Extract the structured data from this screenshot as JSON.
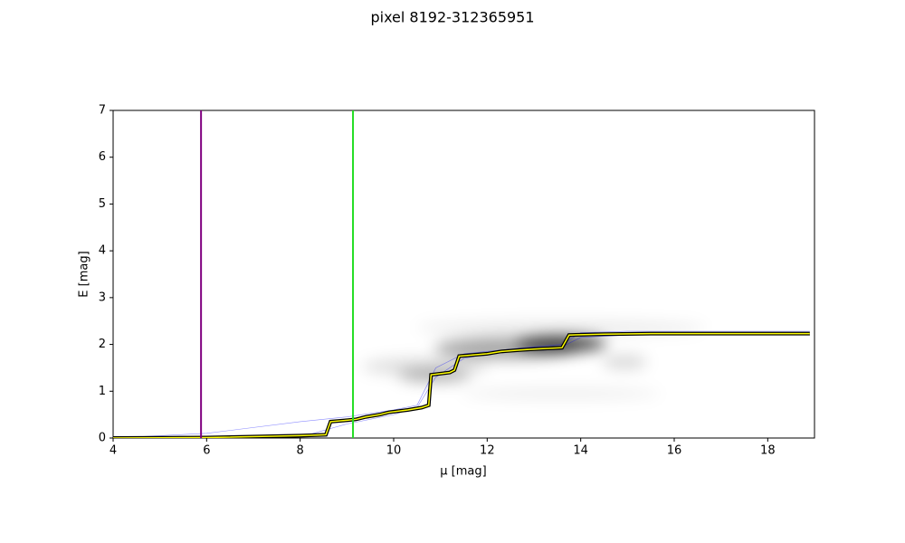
{
  "chart_data": {
    "type": "line",
    "title": "pixel 8192-312365951",
    "xlabel": "μ [mag]",
    "ylabel": "E [mag]",
    "xlim": [
      4,
      19
    ],
    "ylim": [
      0,
      7
    ],
    "xticks": [
      4,
      6,
      8,
      10,
      12,
      14,
      16,
      18
    ],
    "yticks": [
      0,
      1,
      2,
      3,
      4,
      5,
      6,
      7
    ],
    "vlines": [
      {
        "x": 5.88,
        "color": "#800080"
      },
      {
        "x": 9.13,
        "color": "#22dd22"
      }
    ],
    "series": [
      {
        "color": "#0000ff",
        "width": 0.6,
        "opacity": 0.45,
        "x": [
          4,
          6,
          8,
          9,
          10,
          10.5,
          10.9,
          11.5,
          12,
          13,
          13.6,
          14,
          15,
          18.9
        ],
        "values": [
          0,
          0.1,
          0.35,
          0.45,
          0.6,
          0.7,
          1.5,
          1.8,
          1.85,
          1.95,
          2.0,
          2.25,
          2.28,
          2.28
        ]
      },
      {
        "color": "#0000ff",
        "width": 0.6,
        "opacity": 0.45,
        "x": [
          4,
          6,
          8,
          9,
          10,
          10.5,
          10.9,
          11.5,
          12,
          13,
          13.6,
          14,
          15,
          18.9
        ],
        "values": [
          0,
          0,
          0.02,
          0.3,
          0.5,
          0.65,
          1.3,
          1.7,
          1.8,
          1.9,
          1.95,
          2.15,
          2.2,
          2.2
        ]
      },
      {
        "color": "#ffff00",
        "outline": "#000000",
        "width": 1.5,
        "x": [
          4,
          6,
          8,
          8.55,
          8.65,
          9.0,
          9.2,
          9.4,
          9.7,
          9.9,
          10.3,
          10.6,
          10.75,
          10.8,
          11.2,
          11.3,
          11.4,
          12,
          12.3,
          12.7,
          13,
          13.6,
          13.75,
          14.5,
          15.5,
          18.9
        ],
        "values": [
          0,
          0.01,
          0.05,
          0.07,
          0.35,
          0.38,
          0.4,
          0.45,
          0.5,
          0.55,
          0.6,
          0.65,
          0.7,
          1.35,
          1.4,
          1.45,
          1.75,
          1.8,
          1.85,
          1.88,
          1.9,
          1.93,
          2.2,
          2.22,
          2.23,
          2.23
        ]
      }
    ]
  }
}
